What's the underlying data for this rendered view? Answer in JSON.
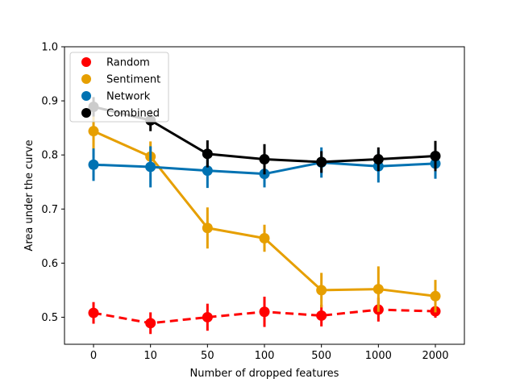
{
  "chart_data": {
    "type": "line",
    "title": "",
    "xlabel": "Number of dropped features",
    "ylabel": "Area under the curve",
    "categories": [
      "0",
      "10",
      "50",
      "100",
      "500",
      "1000",
      "2000"
    ],
    "ylim": [
      0.45,
      1.0
    ],
    "yticks": [
      "0.5",
      "0.6",
      "0.7",
      "0.8",
      "0.9",
      "1.0"
    ],
    "grid": false,
    "legend_position": "top-left",
    "series": [
      {
        "name": "Random",
        "color": "#ff0000",
        "dashed": true,
        "values": [
          0.508,
          0.489,
          0.5,
          0.51,
          0.503,
          0.514,
          0.511
        ],
        "err": [
          0.02,
          0.02,
          0.025,
          0.028,
          0.02,
          0.022,
          0.012
        ]
      },
      {
        "name": "Sentiment",
        "color": "#e69f00",
        "dashed": false,
        "values": [
          0.844,
          0.797,
          0.665,
          0.646,
          0.55,
          0.552,
          0.539
        ],
        "err": [
          0.035,
          0.028,
          0.038,
          0.025,
          0.032,
          0.042,
          0.03
        ]
      },
      {
        "name": "Network",
        "color": "#0072b2",
        "dashed": false,
        "values": [
          0.782,
          0.778,
          0.771,
          0.765,
          0.786,
          0.779,
          0.784
        ],
        "err": [
          0.03,
          0.038,
          0.032,
          0.025,
          0.028,
          0.03,
          0.028
        ]
      },
      {
        "name": "Combined",
        "color": "#000000",
        "dashed": false,
        "values": [
          0.889,
          0.864,
          0.802,
          0.792,
          0.787,
          0.792,
          0.798
        ],
        "err": [
          0.018,
          0.02,
          0.025,
          0.028,
          0.02,
          0.022,
          0.028
        ]
      }
    ]
  }
}
